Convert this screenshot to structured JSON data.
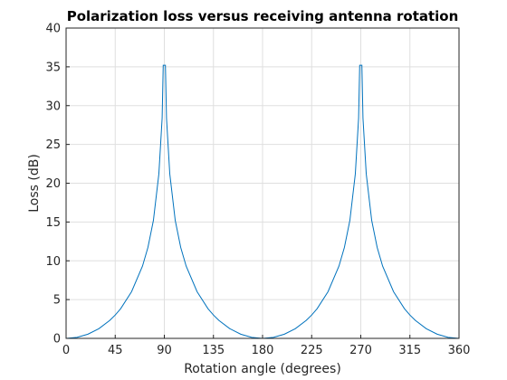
{
  "chart_data": {
    "type": "line",
    "title": "Polarization loss versus receiving antenna rotation",
    "xlabel": "Rotation angle (degrees)",
    "ylabel": "Loss (dB)",
    "xlim": [
      0,
      360
    ],
    "ylim": [
      0,
      40
    ],
    "xticks": [
      0,
      45,
      90,
      135,
      180,
      225,
      270,
      315,
      360
    ],
    "yticks": [
      0,
      5,
      10,
      15,
      20,
      25,
      30,
      35,
      40
    ],
    "grid": true,
    "series": [
      {
        "color": "#0072bd",
        "x": [
          0,
          10,
          20,
          30,
          40,
          45,
          50,
          60,
          70,
          75,
          80,
          85,
          88,
          89,
          90,
          91,
          92,
          95,
          100,
          105,
          110,
          120,
          130,
          135,
          140,
          150,
          160,
          170,
          180,
          190,
          200,
          210,
          220,
          225,
          230,
          240,
          250,
          255,
          260,
          265,
          268,
          269,
          270,
          271,
          272,
          275,
          280,
          285,
          290,
          300,
          310,
          315,
          320,
          330,
          340,
          350,
          360
        ],
        "y": [
          0,
          0.13,
          0.54,
          1.25,
          2.32,
          3.01,
          3.83,
          6.02,
          9.32,
          11.74,
          15.2,
          21.2,
          28.4,
          35.2,
          35.2,
          35.2,
          28.4,
          21.2,
          15.2,
          11.74,
          9.32,
          6.02,
          3.83,
          3.01,
          2.32,
          1.25,
          0.54,
          0.13,
          0,
          0.13,
          0.54,
          1.25,
          2.32,
          3.01,
          3.83,
          6.02,
          9.32,
          11.74,
          15.2,
          21.2,
          28.4,
          35.2,
          35.2,
          35.2,
          28.4,
          21.2,
          15.2,
          11.74,
          9.32,
          6.02,
          3.83,
          3.01,
          2.32,
          1.25,
          0.54,
          0.13,
          0
        ]
      }
    ]
  }
}
